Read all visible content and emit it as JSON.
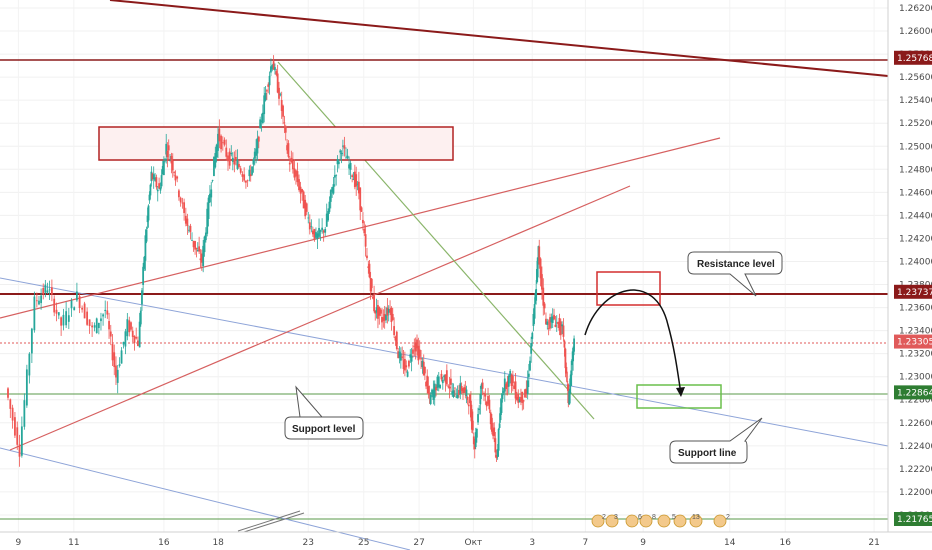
{
  "chart_data": {
    "type": "candlestick",
    "y_axis": {
      "side": "right",
      "ylim": [
        1.2155,
        1.264
      ],
      "ticks": [
        "1.26200",
        "1.26000",
        "1.25800",
        "1.25600",
        "1.25400",
        "1.25200",
        "1.25000",
        "1.24800",
        "1.24600",
        "1.24400",
        "1.24200",
        "1.24000",
        "1.23800",
        "1.23600",
        "1.23400",
        "1.23200",
        "1.23000",
        "1.22800",
        "1.22600",
        "1.22400",
        "1.22200",
        "1.22000",
        "1.21800"
      ]
    },
    "x_axis": {
      "ticks": [
        {
          "label": "9",
          "t": 0.9
        },
        {
          "label": "11",
          "t": 5.7
        },
        {
          "label": "16",
          "t": 13.5
        },
        {
          "label": "18",
          "t": 18.2
        },
        {
          "label": "23",
          "t": 26.0
        },
        {
          "label": "25",
          "t": 30.8
        },
        {
          "label": "27",
          "t": 35.6
        },
        {
          "label": "Окт",
          "t": 40.3
        },
        {
          "label": "3",
          "t": 45.4
        },
        {
          "label": "7",
          "t": 50.0
        },
        {
          "label": "9",
          "t": 55.0
        },
        {
          "label": "14",
          "t": 62.5
        },
        {
          "label": "16",
          "t": 67.3
        },
        {
          "label": "21",
          "t": 75.0
        }
      ]
    },
    "price_tags": [
      {
        "label": "1.25768",
        "value": 1.25768,
        "color": "#8b1a1a"
      },
      {
        "label": "1.23737",
        "value": 1.23737,
        "color": "#8b1a1a"
      },
      {
        "label": "1.23305",
        "value": 1.23305,
        "color": "#e05a5a"
      },
      {
        "label": "1.22864",
        "value": 1.22864,
        "color": "#2e7d32"
      },
      {
        "label": "1.21765",
        "value": 1.21765,
        "color": "#2e7d32"
      }
    ],
    "price_path": [
      [
        0.0,
        1.229
      ],
      [
        1.2,
        1.2236
      ],
      [
        2.5,
        1.2365
      ],
      [
        3.6,
        1.2378
      ],
      [
        4.8,
        1.2345
      ],
      [
        6.2,
        1.237
      ],
      [
        7.5,
        1.234
      ],
      [
        8.6,
        1.2358
      ],
      [
        9.5,
        1.23
      ],
      [
        10.5,
        1.2345
      ],
      [
        11.4,
        1.233
      ],
      [
        12.0,
        1.242
      ],
      [
        12.5,
        1.2475
      ],
      [
        13.2,
        1.2462
      ],
      [
        13.8,
        1.25
      ],
      [
        14.5,
        1.248
      ],
      [
        15.4,
        1.244
      ],
      [
        16.2,
        1.2415
      ],
      [
        16.9,
        1.24
      ],
      [
        17.6,
        1.246
      ],
      [
        18.3,
        1.251
      ],
      [
        19.2,
        1.249
      ],
      [
        20.0,
        1.2485
      ],
      [
        20.9,
        1.247
      ],
      [
        21.6,
        1.2495
      ],
      [
        22.3,
        1.254
      ],
      [
        23.0,
        1.2575
      ],
      [
        23.7,
        1.254
      ],
      [
        24.4,
        1.249
      ],
      [
        25.2,
        1.247
      ],
      [
        26.0,
        1.244
      ],
      [
        26.8,
        1.242
      ],
      [
        27.6,
        1.243
      ],
      [
        28.3,
        1.247
      ],
      [
        29.0,
        1.25
      ],
      [
        29.8,
        1.248
      ],
      [
        30.5,
        1.246
      ],
      [
        31.2,
        1.24
      ],
      [
        31.8,
        1.236
      ],
      [
        32.5,
        1.235
      ],
      [
        33.2,
        1.236
      ],
      [
        33.9,
        1.232
      ],
      [
        34.6,
        1.2305
      ],
      [
        35.3,
        1.233
      ],
      [
        36.0,
        1.231
      ],
      [
        36.6,
        1.228
      ],
      [
        37.3,
        1.2295
      ],
      [
        38.0,
        1.23
      ],
      [
        38.7,
        1.2285
      ],
      [
        39.4,
        1.229
      ],
      [
        40.0,
        1.228
      ],
      [
        40.5,
        1.224
      ],
      [
        41.1,
        1.2295
      ],
      [
        41.8,
        1.227
      ],
      [
        42.4,
        1.223
      ],
      [
        42.9,
        1.229
      ],
      [
        43.6,
        1.23
      ],
      [
        44.3,
        1.228
      ],
      [
        45.0,
        1.2285
      ],
      [
        45.6,
        1.235
      ],
      [
        46.0,
        1.241
      ],
      [
        46.7,
        1.2345
      ],
      [
        47.4,
        1.235
      ],
      [
        48.1,
        1.234
      ],
      [
        48.6,
        1.228
      ],
      [
        49.1,
        1.233
      ]
    ],
    "annotations": [
      {
        "label": "Resistance level"
      },
      {
        "label": "Support level"
      },
      {
        "label": "Support line"
      }
    ],
    "toolbar_labels": [
      "2",
      "3",
      "6",
      "8",
      "5",
      "13",
      "2"
    ]
  }
}
